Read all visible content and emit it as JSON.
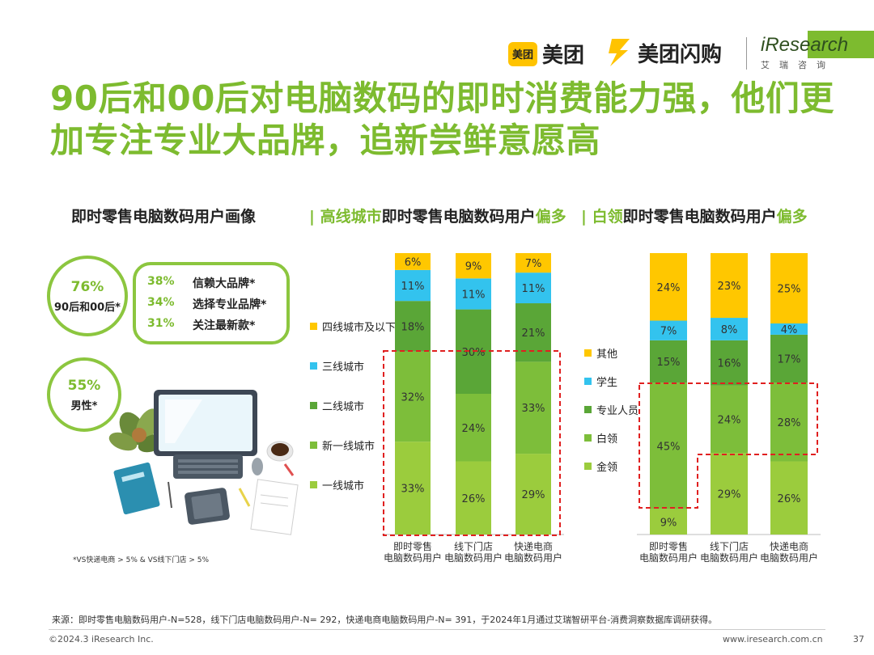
{
  "header": {
    "meituan_badge": "美团",
    "meituan_text": "美团",
    "shangou_text": "美团闪购",
    "iresearch_text": "iResearch",
    "iresearch_sub": "艾瑞咨询"
  },
  "title": "90后和00后对电脑数码的即时消费能力强，他们更加专注专业大品牌，追新尝鲜意愿高",
  "sections": {
    "left": "即时零售电脑数码用户画像",
    "mid_prefix": "| ",
    "mid_green1": "高线城市",
    "mid_black": "即时零售电脑数码用户",
    "mid_green2": "偏多",
    "right_prefix": "| ",
    "right_green1": "白领",
    "right_black": "即时零售电脑数码用户",
    "right_green2": "偏多"
  },
  "profile": {
    "age": {
      "value": "76%",
      "label": "90后和00后*"
    },
    "gender": {
      "value": "55%",
      "label": "男性*"
    },
    "prefs": [
      {
        "value": "38%",
        "label": "信赖大品牌*"
      },
      {
        "value": "34%",
        "label": "选择专业品牌*"
      },
      {
        "value": "31%",
        "label": "关注最新款*"
      }
    ],
    "note": "*VS快递电商 > 5% & VS线下门店 > 5%"
  },
  "colors": {
    "accent": "#7dbb2f",
    "yellow": "#ffc700",
    "cyan": "#33c3ee",
    "darkgreen": "#5aa637",
    "green": "#7dbe3a",
    "lightgreen": "#9bcc3d",
    "dashed": "#e02020"
  },
  "chart_data": [
    {
      "type": "bar",
      "stacked": true,
      "title": "高线城市即时零售电脑数码用户偏多",
      "categories": [
        "即时零售电脑数码用户",
        "线下门店电脑数码用户",
        "快递电商电脑数码用户"
      ],
      "category_lines": [
        [
          "即时零售",
          "电脑数码用户"
        ],
        [
          "线下门店",
          "电脑数码用户"
        ],
        [
          "快递电商",
          "电脑数码用户"
        ]
      ],
      "series": [
        {
          "name": "一线城市",
          "color": "#9bcc3d",
          "values": [
            33,
            26,
            29
          ],
          "labels": [
            "33%",
            "26%",
            "29%"
          ]
        },
        {
          "name": "新一线城市",
          "color": "#7dbe3a",
          "values": [
            32,
            24,
            33
          ],
          "labels": [
            "32%",
            "24%",
            "33%"
          ]
        },
        {
          "name": "二线城市",
          "color": "#5aa637",
          "values": [
            18,
            30,
            21
          ],
          "labels": [
            "18%",
            "30%",
            "21%"
          ]
        },
        {
          "name": "三线城市",
          "color": "#33c3ee",
          "values": [
            11,
            11,
            11
          ],
          "labels": [
            "11%",
            "11%",
            "11%"
          ]
        },
        {
          "name": "四线城市及以下",
          "color": "#ffc700",
          "values": [
            6,
            9,
            7
          ],
          "labels": [
            "6%",
            "9%",
            "7%"
          ]
        }
      ],
      "legend_order": [
        "四线城市及以下",
        "三线城市",
        "二线城市",
        "新一线城市",
        "一线城市"
      ],
      "ylim": [
        0,
        100
      ]
    },
    {
      "type": "bar",
      "stacked": true,
      "title": "白领即时零售电脑数码用户偏多",
      "categories": [
        "即时零售电脑数码用户",
        "线下门店电脑数码用户",
        "快递电商电脑数码用户"
      ],
      "category_lines": [
        [
          "即时零售",
          "电脑数码用户"
        ],
        [
          "线下门店",
          "电脑数码用户"
        ],
        [
          "快递电商",
          "电脑数码用户"
        ]
      ],
      "series": [
        {
          "name": "金领",
          "color": "#9bcc3d",
          "values": [
            9,
            29,
            26
          ],
          "labels": [
            "9%",
            "29%",
            "26%"
          ]
        },
        {
          "name": "白领",
          "color": "#7dbe3a",
          "values": [
            45,
            24,
            28
          ],
          "labels": [
            "45%",
            "24%",
            "28%"
          ]
        },
        {
          "name": "专业人员",
          "color": "#5aa637",
          "values": [
            15,
            16,
            17
          ],
          "labels": [
            "15%",
            "16%",
            "17%"
          ]
        },
        {
          "name": "学生",
          "color": "#33c3ee",
          "values": [
            7,
            8,
            4
          ],
          "labels": [
            "7%",
            "8%",
            "4%"
          ]
        },
        {
          "name": "其他",
          "color": "#ffc700",
          "values": [
            24,
            23,
            25
          ],
          "labels": [
            "24%",
            "23%",
            "25%"
          ]
        }
      ],
      "legend_order": [
        "其他",
        "学生",
        "专业人员",
        "白领",
        "金领"
      ],
      "ylim": [
        0,
        100
      ]
    }
  ],
  "footer": {
    "source": "来源：即时零售电脑数码用户-N=528，线下门店电脑数码用户-N= 292，快递电商电脑数码用户-N= 391，于2024年1月通过艾瑞智研平台-消费洞察数据库调研获得。",
    "copyright": "©2024.3 iResearch Inc.",
    "site": "www.iresearch.com.cn",
    "page": "37"
  }
}
